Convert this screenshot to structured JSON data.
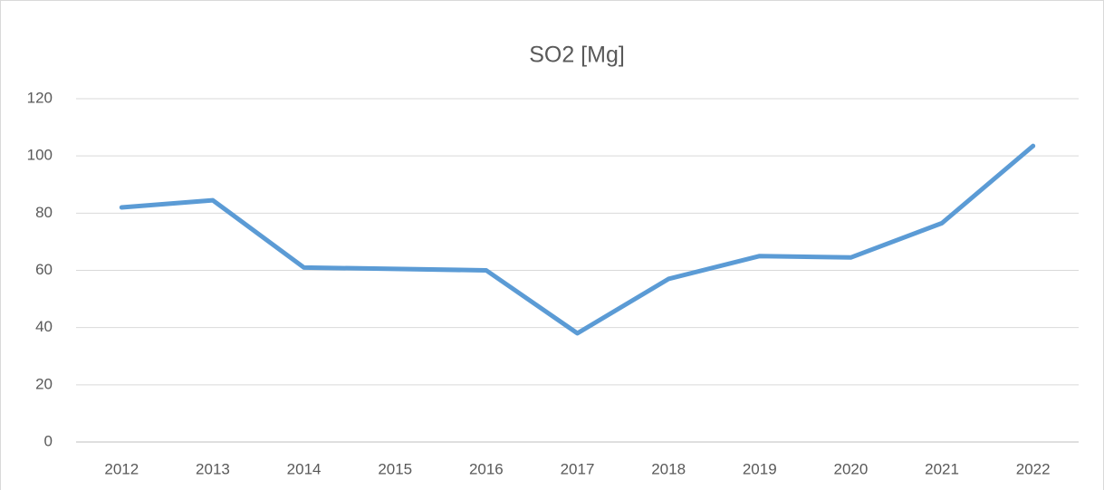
{
  "chart_data": {
    "type": "line",
    "title": "SO2 [Mg]",
    "categories": [
      "2012",
      "2013",
      "2014",
      "2015",
      "2016",
      "2017",
      "2018",
      "2019",
      "2020",
      "2021",
      "2022"
    ],
    "series": [
      {
        "name": "SO2 [Mg]",
        "color": "#5b9bd5",
        "values": [
          82,
          84.5,
          61,
          60.5,
          60,
          38,
          57,
          65,
          64.5,
          76.5,
          103.5
        ]
      }
    ],
    "ylim": [
      0,
      120
    ],
    "yticks": [
      0,
      20,
      40,
      60,
      80,
      100,
      120
    ],
    "grid": true
  }
}
